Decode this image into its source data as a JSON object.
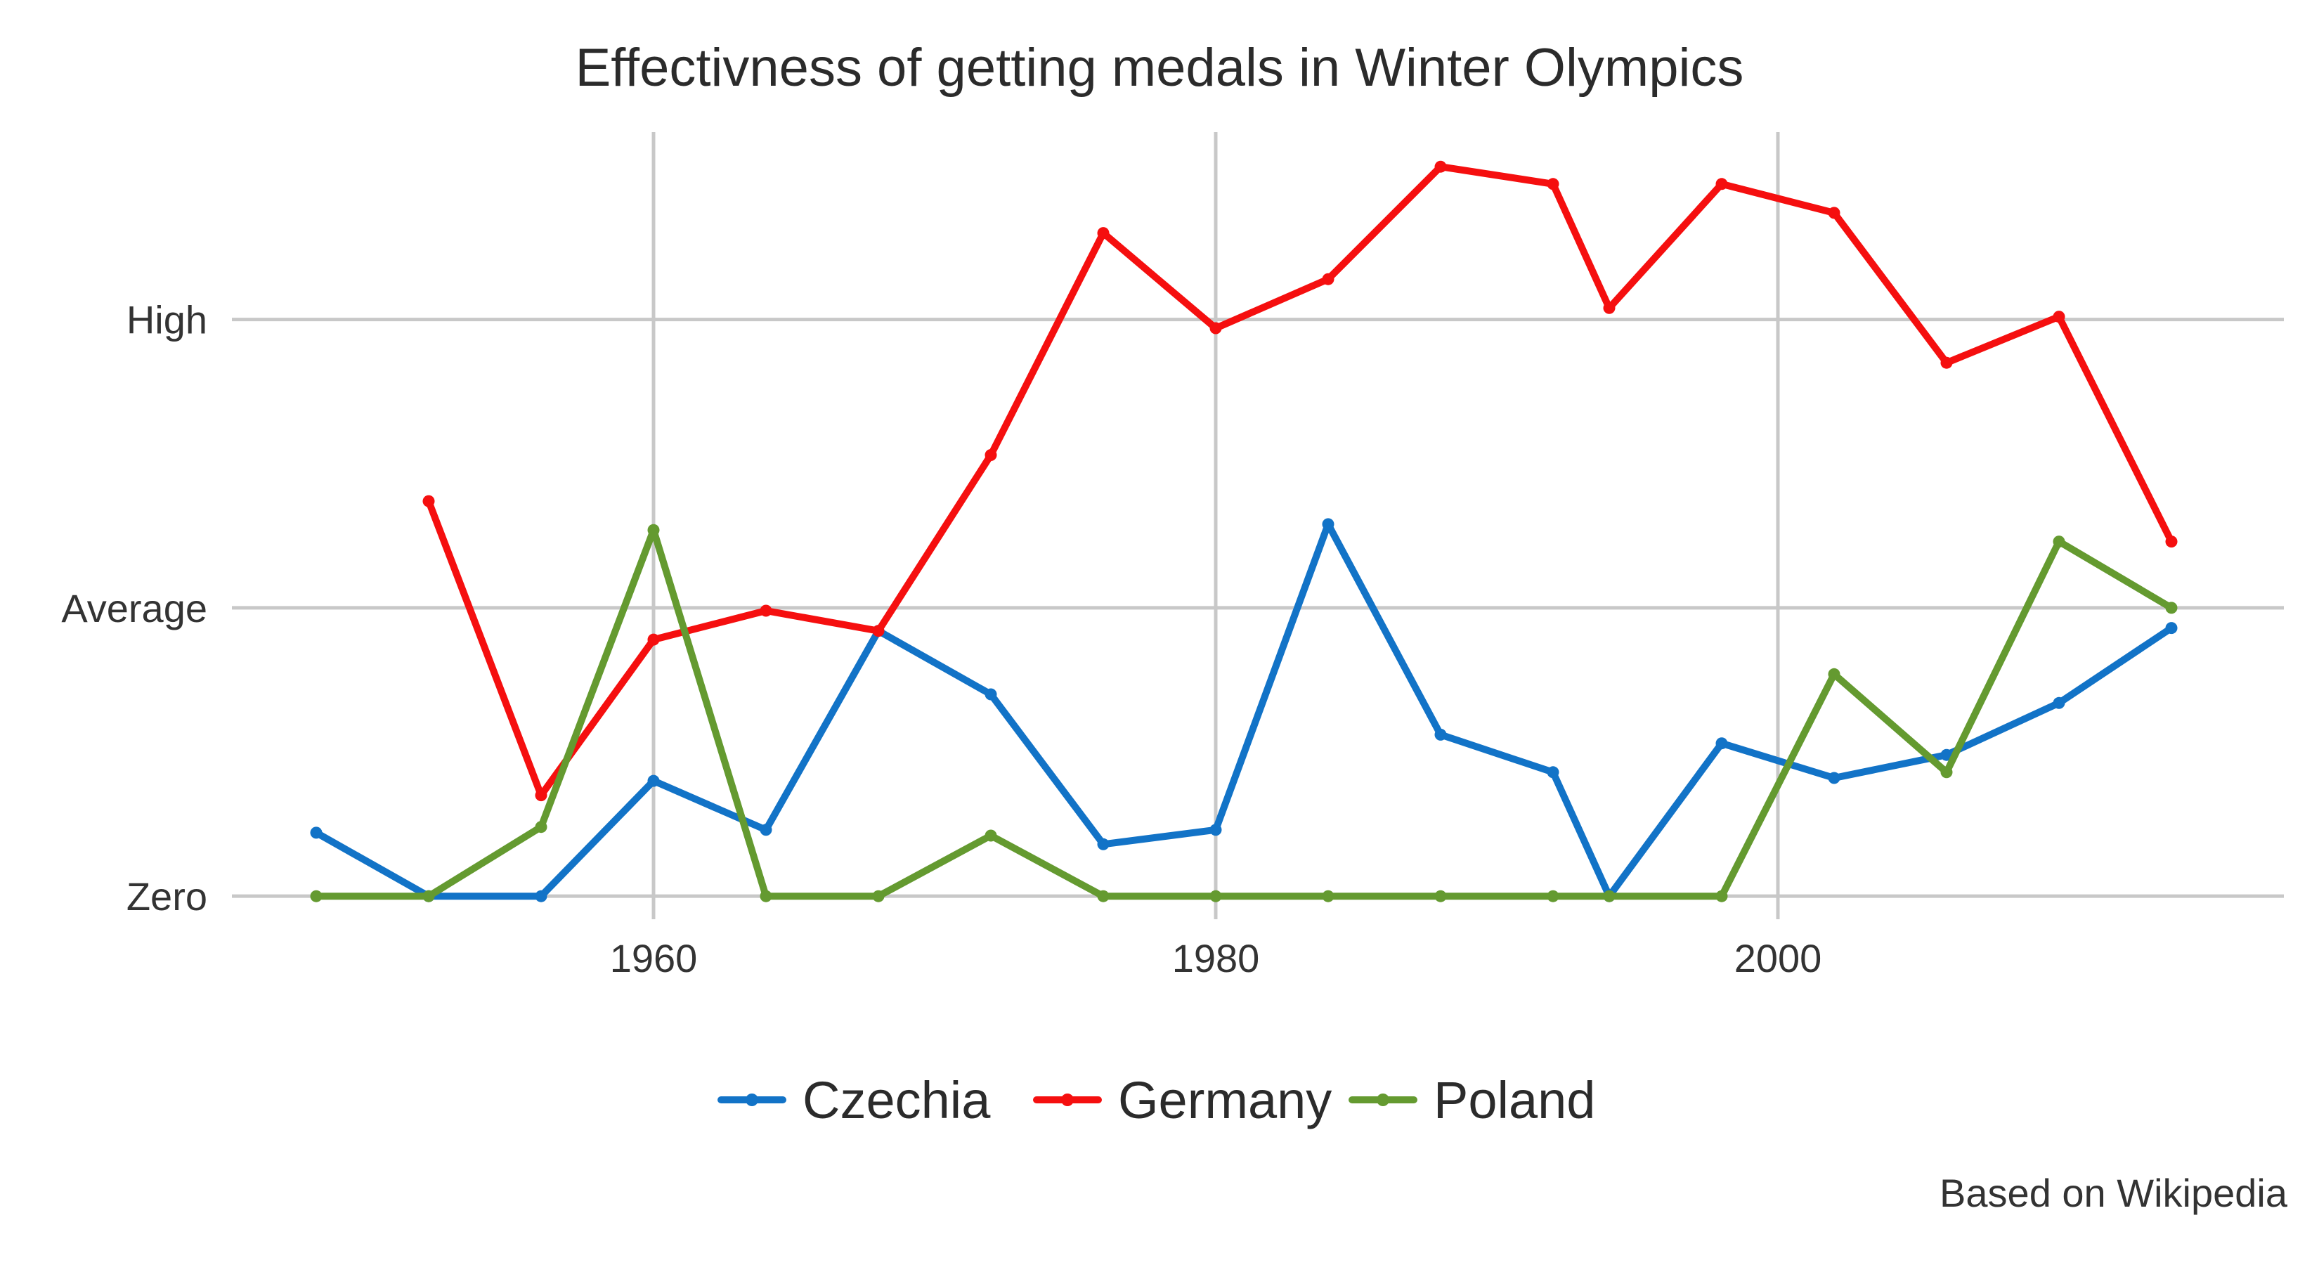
{
  "chart_data": {
    "type": "line",
    "title": "Effectivness of getting medals in Winter Olympics",
    "caption": "Based on Wikipedia",
    "xlabel": "",
    "ylabel": "",
    "xlim": [
      1945,
      2018
    ],
    "ylim": [
      -0.08,
      2.65
    ],
    "x_ticks": [
      1960,
      1980,
      2000
    ],
    "y_ticks": [
      {
        "value": 0,
        "label": "Zero"
      },
      {
        "value": 1,
        "label": "Average"
      },
      {
        "value": 2,
        "label": "High"
      }
    ],
    "grid": true,
    "legend_position": "bottom",
    "series": [
      {
        "name": "Czechia",
        "color": "#1273c7",
        "points": [
          {
            "x": 1948,
            "y": 0.22
          },
          {
            "x": 1952,
            "y": 0.0
          },
          {
            "x": 1956,
            "y": 0.0
          },
          {
            "x": 1960,
            "y": 0.4
          },
          {
            "x": 1964,
            "y": 0.23
          },
          {
            "x": 1968,
            "y": 0.92
          },
          {
            "x": 1972,
            "y": 0.7
          },
          {
            "x": 1976,
            "y": 0.18
          },
          {
            "x": 1980,
            "y": 0.23
          },
          {
            "x": 1984,
            "y": 1.29
          },
          {
            "x": 1988,
            "y": 0.56
          },
          {
            "x": 1992,
            "y": 0.43
          },
          {
            "x": 1994,
            "y": 0.0
          },
          {
            "x": 1998,
            "y": 0.53
          },
          {
            "x": 2002,
            "y": 0.41
          },
          {
            "x": 2006,
            "y": 0.49
          },
          {
            "x": 2010,
            "y": 0.67
          },
          {
            "x": 2014,
            "y": 0.93
          }
        ]
      },
      {
        "name": "Germany",
        "color": "#f50f0f",
        "points": [
          {
            "x": 1952,
            "y": 1.37
          },
          {
            "x": 1956,
            "y": 0.35
          },
          {
            "x": 1960,
            "y": 0.89
          },
          {
            "x": 1964,
            "y": 0.99
          },
          {
            "x": 1968,
            "y": 0.92
          },
          {
            "x": 1972,
            "y": 1.53
          },
          {
            "x": 1976,
            "y": 2.3
          },
          {
            "x": 1980,
            "y": 1.97
          },
          {
            "x": 1984,
            "y": 2.14
          },
          {
            "x": 1988,
            "y": 2.53
          },
          {
            "x": 1992,
            "y": 2.47
          },
          {
            "x": 1994,
            "y": 2.04
          },
          {
            "x": 1998,
            "y": 2.47
          },
          {
            "x": 2002,
            "y": 2.37
          },
          {
            "x": 2006,
            "y": 1.85
          },
          {
            "x": 2010,
            "y": 2.01
          },
          {
            "x": 2014,
            "y": 1.23
          }
        ]
      },
      {
        "name": "Poland",
        "color": "#649a30",
        "points": [
          {
            "x": 1948,
            "y": 0.0
          },
          {
            "x": 1952,
            "y": 0.0
          },
          {
            "x": 1956,
            "y": 0.24
          },
          {
            "x": 1960,
            "y": 1.27
          },
          {
            "x": 1964,
            "y": 0.0
          },
          {
            "x": 1968,
            "y": 0.0
          },
          {
            "x": 1972,
            "y": 0.21
          },
          {
            "x": 1976,
            "y": 0.0
          },
          {
            "x": 1980,
            "y": 0.0
          },
          {
            "x": 1984,
            "y": 0.0
          },
          {
            "x": 1988,
            "y": 0.0
          },
          {
            "x": 1992,
            "y": 0.0
          },
          {
            "x": 1994,
            "y": 0.0
          },
          {
            "x": 1998,
            "y": 0.0
          },
          {
            "x": 2002,
            "y": 0.77
          },
          {
            "x": 2006,
            "y": 0.43
          },
          {
            "x": 2010,
            "y": 1.23
          },
          {
            "x": 2014,
            "y": 1.0
          }
        ]
      }
    ]
  }
}
